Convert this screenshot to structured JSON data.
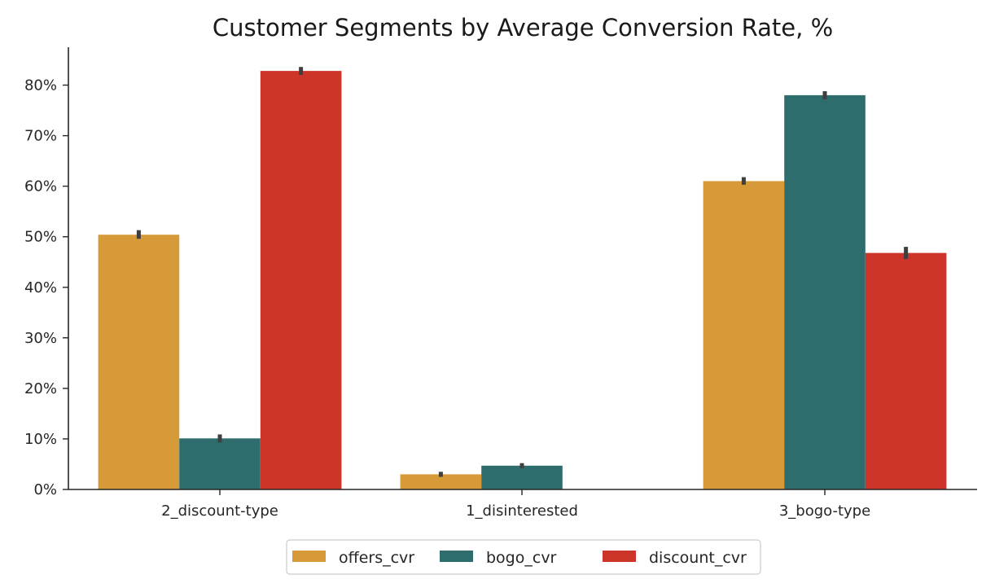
{
  "chart_data": {
    "type": "bar",
    "title": "Customer Segments by Average Conversion Rate, %",
    "xlabel": "",
    "ylabel": "",
    "categories": [
      "2_discount-type",
      "1_disinterested",
      "3_bogo-type"
    ],
    "ylim": [
      0,
      88
    ],
    "y_ticks": [
      0,
      10,
      20,
      30,
      40,
      50,
      60,
      70,
      80
    ],
    "y_tick_labels": [
      "0%",
      "10%",
      "20%",
      "30%",
      "40%",
      "50%",
      "60%",
      "70%",
      "80%"
    ],
    "grid": false,
    "legend_position": "bottom-center",
    "series": [
      {
        "name": "offers_cvr",
        "color": "#d69a38",
        "values": [
          50.4,
          3.0,
          61.0
        ],
        "error": [
          [
            49.6,
            51.3
          ],
          [
            2.5,
            3.5
          ],
          [
            60.3,
            61.8
          ]
        ]
      },
      {
        "name": "bogo_cvr",
        "color": "#2e6c6d",
        "values": [
          10.1,
          4.7,
          78.0
        ],
        "error": [
          [
            9.3,
            10.9
          ],
          [
            4.2,
            5.2
          ],
          [
            77.2,
            78.8
          ]
        ]
      },
      {
        "name": "discount_cvr",
        "color": "#cd352b",
        "values": [
          82.8,
          0.0,
          46.8
        ],
        "error": [
          [
            82.0,
            83.6
          ],
          null,
          [
            45.6,
            48.0
          ]
        ]
      }
    ]
  }
}
